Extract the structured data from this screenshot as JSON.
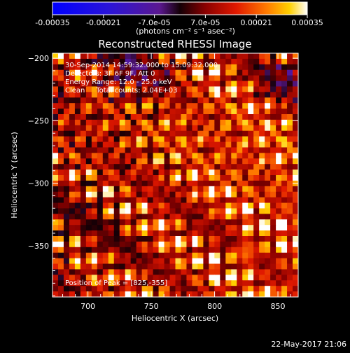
{
  "chart_data": {
    "type": "heatmap",
    "title": "Reconstructed RHESSI Image",
    "xlabel": "Heliocentric X (arcsec)",
    "ylabel": "Heliocentric Y (arcsec)",
    "xlim": [
      672,
      866
    ],
    "ylim": [
      -391,
      -196
    ],
    "x_ticks": [
      700,
      750,
      800,
      850
    ],
    "y_ticks": [
      -200,
      -250,
      -300,
      -350
    ],
    "colorbar": {
      "min": -0.00035,
      "max": 0.00035,
      "tick_values": [
        -0.00035,
        -0.00021,
        -7e-05,
        7e-05,
        0.00021,
        0.00035
      ],
      "tick_labels": [
        "-0.00035",
        "-0.00021",
        "-7.0e-05",
        "7.0e-05",
        "0.00021",
        "0.00035"
      ],
      "unit_label": "(photons cm⁻² s⁻¹ asec⁻²)",
      "colormap": "RHESSI standard: blue-purple (negative) to red-orange-yellow-white (positive)"
    },
    "annotations": [
      "30-Sep-2014 14:59:32.000 to 15:09:32.000",
      "Detectors: 3F 6F 9F, Att 0",
      "Energy Range: 12.0 - 25.0 keV",
      "Clean     Total counts: 2.04E+03",
      "Position of Peak = [825,-355]"
    ],
    "peak": {
      "x": 825,
      "y": -355
    },
    "footer_date": "22-May-2017 21:06"
  }
}
